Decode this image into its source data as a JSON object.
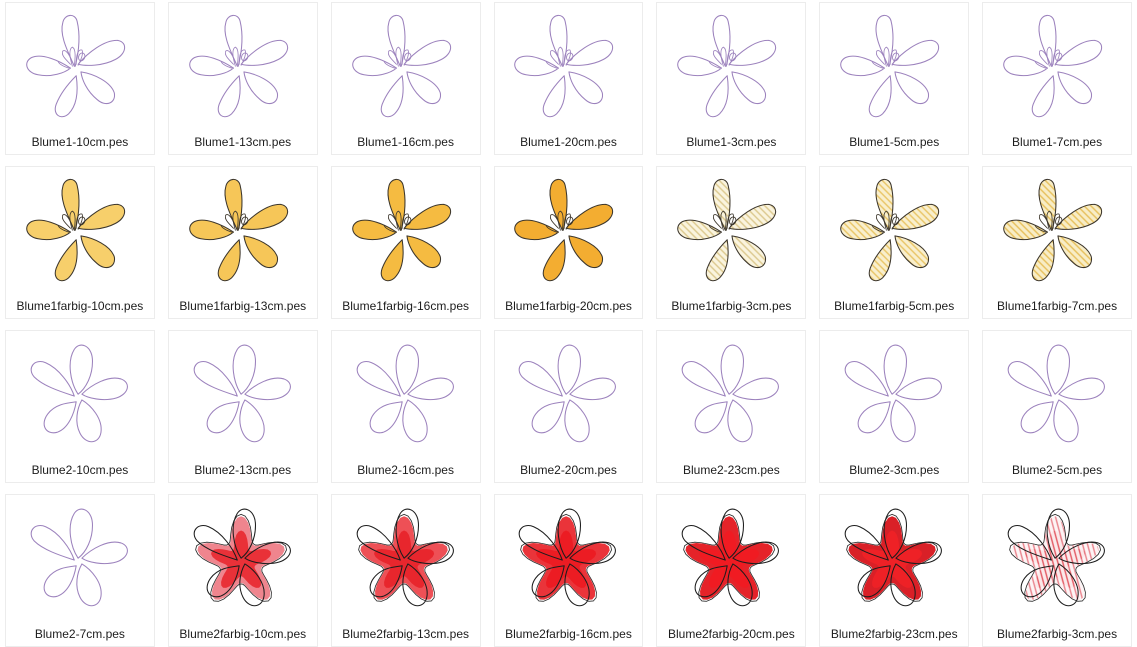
{
  "window": {
    "background": "#ffffff",
    "tile_border_color": "#ececec",
    "label_color": "#1c1c1c"
  },
  "threads": {
    "outline_purple": "#9c82bd",
    "dark_outline_blume1_color": "#3c362c",
    "dark_outline_blume2_color": "#1d1d1d",
    "star_edge_black": "#2e2e2e"
  },
  "grid": {
    "columns": 7,
    "rows": 4,
    "items": [
      {
        "label": "Blume1-10cm.pes",
        "flower": "blume1",
        "mode": "outline"
      },
      {
        "label": "Blume1-13cm.pes",
        "flower": "blume1",
        "mode": "outline"
      },
      {
        "label": "Blume1-16cm.pes",
        "flower": "blume1",
        "mode": "outline"
      },
      {
        "label": "Blume1-20cm.pes",
        "flower": "blume1",
        "mode": "outline"
      },
      {
        "label": "Blume1-3cm.pes",
        "flower": "blume1",
        "mode": "outline"
      },
      {
        "label": "Blume1-5cm.pes",
        "flower": "blume1",
        "mode": "outline"
      },
      {
        "label": "Blume1-7cm.pes",
        "flower": "blume1",
        "mode": "outline"
      },
      {
        "label": "Blume1farbig-10cm.pes",
        "flower": "blume1",
        "mode": "solid",
        "fill": "#f7cf6b"
      },
      {
        "label": "Blume1farbig-13cm.pes",
        "flower": "blume1",
        "mode": "solid",
        "fill": "#f6c658"
      },
      {
        "label": "Blume1farbig-16cm.pes",
        "flower": "blume1",
        "mode": "solid",
        "fill": "#f5bb41"
      },
      {
        "label": "Blume1farbig-20cm.pes",
        "flower": "blume1",
        "mode": "solid",
        "fill": "#f3ad31"
      },
      {
        "label": "Blume1farbig-3cm.pes",
        "flower": "blume1",
        "mode": "hatch",
        "fill": "#dcc98f",
        "base": "#faf4de"
      },
      {
        "label": "Blume1farbig-5cm.pes",
        "flower": "blume1",
        "mode": "hatch",
        "fill": "#e9c566",
        "base": "#f9efcd"
      },
      {
        "label": "Blume1farbig-7cm.pes",
        "flower": "blume1",
        "mode": "hatch",
        "fill": "#e7c05c",
        "base": "#f8edc6"
      },
      {
        "label": "Blume2-10cm.pes",
        "flower": "blume2",
        "mode": "outline"
      },
      {
        "label": "Blume2-13cm.pes",
        "flower": "blume2",
        "mode": "outline"
      },
      {
        "label": "Blume2-16cm.pes",
        "flower": "blume2",
        "mode": "outline"
      },
      {
        "label": "Blume2-20cm.pes",
        "flower": "blume2",
        "mode": "outline"
      },
      {
        "label": "Blume2-23cm.pes",
        "flower": "blume2",
        "mode": "outline"
      },
      {
        "label": "Blume2-3cm.pes",
        "flower": "blume2",
        "mode": "outline"
      },
      {
        "label": "Blume2-5cm.pes",
        "flower": "blume2",
        "mode": "outline"
      },
      {
        "label": "Blume2-7cm.pes",
        "flower": "blume2",
        "mode": "outline"
      },
      {
        "label": "Blume2farbig-10cm.pes",
        "flower": "blume2",
        "mode": "solid",
        "fill": "#ef858e",
        "fill2": "#e93138"
      },
      {
        "label": "Blume2farbig-13cm.pes",
        "flower": "blume2",
        "mode": "solid",
        "fill": "#ee5056",
        "fill2": "#e8262d"
      },
      {
        "label": "Blume2farbig-16cm.pes",
        "flower": "blume2",
        "mode": "solid",
        "fill": "#ea343a",
        "fill2": "#ec1c23"
      },
      {
        "label": "Blume2farbig-20cm.pes",
        "flower": "blume2",
        "mode": "solid",
        "fill": "#e52329",
        "fill2": "#f01b22"
      },
      {
        "label": "Blume2farbig-23cm.pes",
        "flower": "blume2",
        "mode": "solid",
        "fill": "#d92027",
        "fill2": "#ee2126"
      },
      {
        "label": "Blume2farbig-3cm.pes",
        "flower": "blume2",
        "mode": "hatch",
        "fill": "#e9848d",
        "base": "#fdf4f5",
        "fill2": "#e35a64",
        "base2": "#fbe9ea"
      }
    ]
  }
}
